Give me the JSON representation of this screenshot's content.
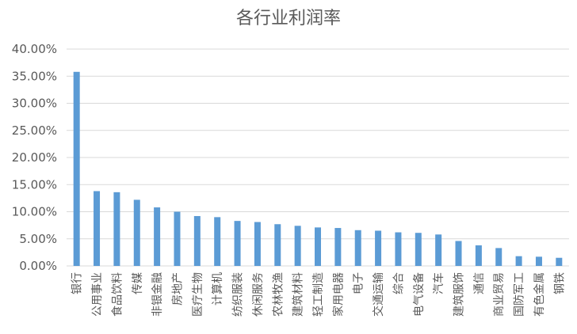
{
  "chart_data": {
    "type": "bar",
    "title": "各行业利润率",
    "xlabel": "",
    "ylabel": "",
    "ylim": [
      0,
      0.4
    ],
    "yticks": [
      "0.00%",
      "5.00%",
      "10.00%",
      "15.00%",
      "20.00%",
      "25.00%",
      "30.00%",
      "35.00%",
      "40.00%"
    ],
    "grid": true,
    "legend": "none",
    "bar_color": "#5b9bd5",
    "categories": [
      "银行",
      "公用事业",
      "食品饮料",
      "传媒",
      "非银金融",
      "房地产",
      "医疗生物",
      "计算机",
      "纺织服装",
      "休闲服务",
      "农林牧渔",
      "建筑材料",
      "轻工制造",
      "家用电器",
      "电子",
      "交通运输",
      "综合",
      "电气设备",
      "汽车",
      "建筑服饰",
      "通信",
      "商业贸易",
      "国防军工",
      "有色金属",
      "钢铁"
    ],
    "values": [
      0.358,
      0.138,
      0.136,
      0.122,
      0.108,
      0.1,
      0.092,
      0.09,
      0.083,
      0.081,
      0.077,
      0.074,
      0.071,
      0.07,
      0.066,
      0.065,
      0.062,
      0.061,
      0.058,
      0.046,
      0.038,
      0.033,
      0.018,
      0.017,
      0.015
    ]
  }
}
